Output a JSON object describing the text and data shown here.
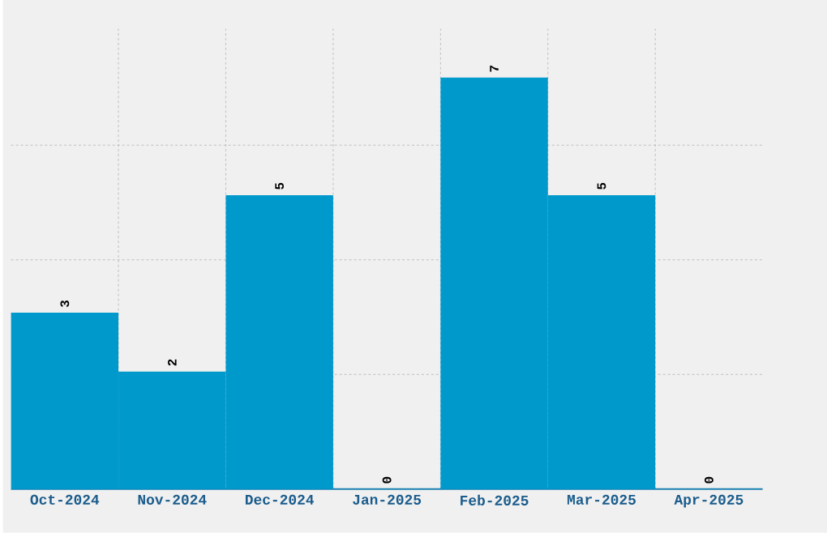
{
  "chart_data": {
    "type": "bar",
    "categories": [
      "Oct-2024",
      "Nov-2024",
      "Dec-2024",
      "Jan-2025",
      "Feb-2025",
      "Mar-2025",
      "Apr-2025"
    ],
    "values": [
      3,
      2,
      5,
      0,
      7,
      5,
      0
    ],
    "color": "#0099cc",
    "data_labels": true,
    "grid": true,
    "tick_labels": "x",
    "ylim": [
      0,
      7.83
    ],
    "yticks": [
      {
        "value": 1.95,
        "label": null
      },
      {
        "value": 3.9,
        "label": null
      },
      {
        "value": 5.85,
        "label": null
      }
    ]
  }
}
